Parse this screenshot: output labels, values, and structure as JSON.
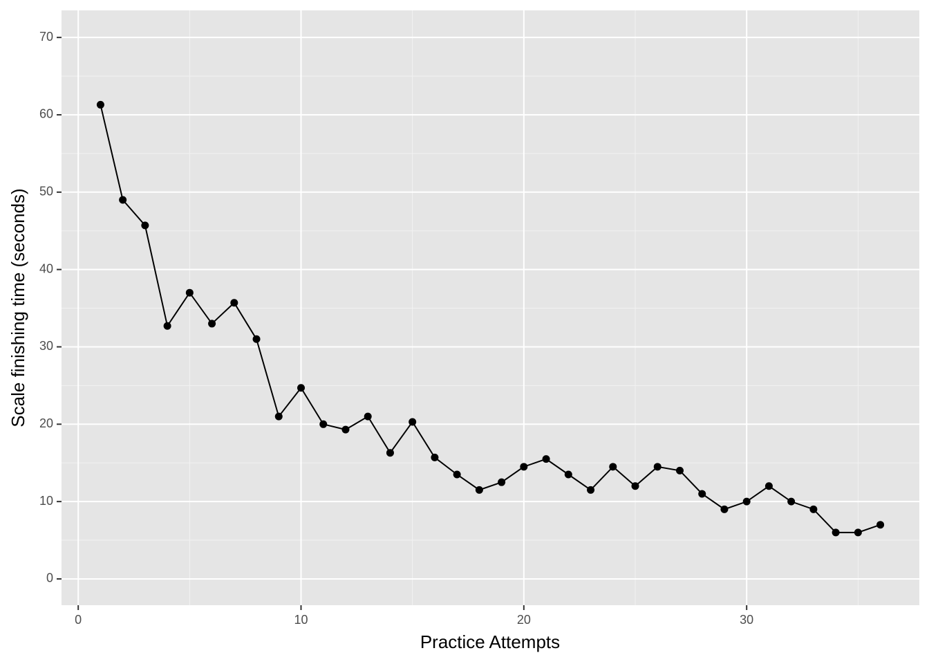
{
  "chart_data": {
    "type": "line",
    "x_label": "Practice Attempts",
    "y_label": "Scale finishing time (seconds)",
    "x": [
      1,
      2,
      3,
      4,
      5,
      6,
      7,
      8,
      9,
      10,
      11,
      12,
      13,
      14,
      15,
      16,
      17,
      18,
      19,
      20,
      21,
      22,
      23,
      24,
      25,
      26,
      27,
      28,
      29,
      30,
      31,
      32,
      33,
      34,
      35,
      36
    ],
    "series": [
      {
        "color": "#000000",
        "values": [
          61.3,
          49,
          45.7,
          32.7,
          37,
          33,
          35.7,
          31,
          21,
          24.7,
          20,
          19.3,
          21,
          16.3,
          20.3,
          15.7,
          13.5,
          11.5,
          12.5,
          14.5,
          15.5,
          13.5,
          11.5,
          14.5,
          12,
          14.5,
          14,
          11,
          9,
          10,
          12,
          10,
          9,
          6,
          6,
          7
        ]
      }
    ],
    "xlim": [
      -0.75,
      37.75
    ],
    "xticks": [
      0,
      10,
      20,
      30
    ],
    "ylim": [
      -3.4,
      73.5
    ],
    "yticks": [
      0,
      10,
      20,
      30,
      40,
      50,
      60,
      70
    ],
    "grid": true,
    "minor_grid": true,
    "markers": true
  }
}
